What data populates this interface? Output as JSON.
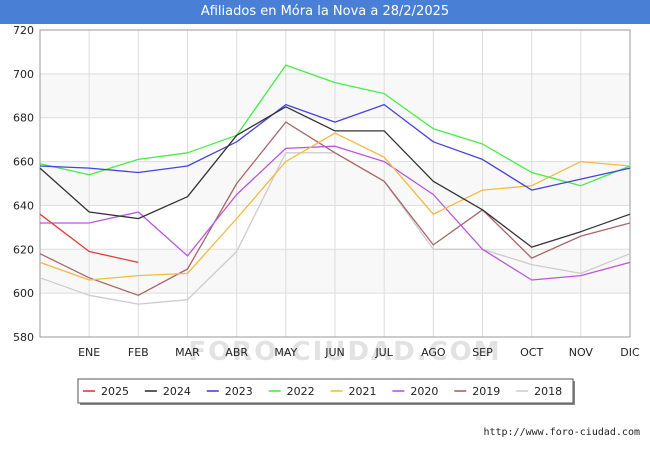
{
  "header": {
    "title": "Afiliados en Móra la Nova a 28/2/2025"
  },
  "footer": {
    "credit": "http://www.foro-ciudad.com"
  },
  "watermark": "FORO-CIUDAD.COM",
  "chart_data": {
    "type": "line",
    "categories": [
      "",
      "ENE",
      "FEB",
      "MAR",
      "ABR",
      "MAY",
      "JUN",
      "JUL",
      "AGO",
      "SEP",
      "OCT",
      "NOV",
      "DIC"
    ],
    "ylim": [
      580,
      720
    ],
    "yticks": [
      580,
      600,
      620,
      640,
      660,
      680,
      700,
      720
    ],
    "grid": true,
    "legend_position": "bottom",
    "series": [
      {
        "name": "2025",
        "color": "#e03b3b",
        "values": [
          636,
          619,
          614,
          null,
          null,
          null,
          null,
          null,
          null,
          null,
          null,
          null,
          null
        ]
      },
      {
        "name": "2024",
        "color": "#333333",
        "values": [
          657,
          637,
          634,
          644,
          672,
          685,
          674,
          674,
          651,
          638,
          621,
          628,
          636
        ]
      },
      {
        "name": "2023",
        "color": "#4444dd",
        "values": [
          658,
          657,
          655,
          658,
          669,
          686,
          678,
          686,
          669,
          661,
          647,
          652,
          657
        ]
      },
      {
        "name": "2022",
        "color": "#44ee44",
        "values": [
          659,
          654,
          661,
          664,
          672,
          704,
          696,
          691,
          675,
          668,
          655,
          649,
          658
        ]
      },
      {
        "name": "2021",
        "color": "#f5b942",
        "values": [
          614,
          606,
          608,
          609,
          634,
          660,
          673,
          662,
          636,
          647,
          649,
          660,
          658
        ]
      },
      {
        "name": "2020",
        "color": "#bb55dd",
        "values": [
          632,
          632,
          637,
          617,
          645,
          666,
          667,
          660,
          645,
          620,
          606,
          608,
          614
        ]
      },
      {
        "name": "2019",
        "color": "#aa6666",
        "values": [
          618,
          607,
          599,
          611,
          650,
          678,
          664,
          651,
          622,
          638,
          616,
          626,
          632
        ]
      },
      {
        "name": "2018",
        "color": "#cccccc",
        "values": [
          607,
          599,
          595,
          597,
          619,
          664,
          664,
          651,
          620,
          620,
          613,
          609,
          618
        ]
      }
    ]
  }
}
